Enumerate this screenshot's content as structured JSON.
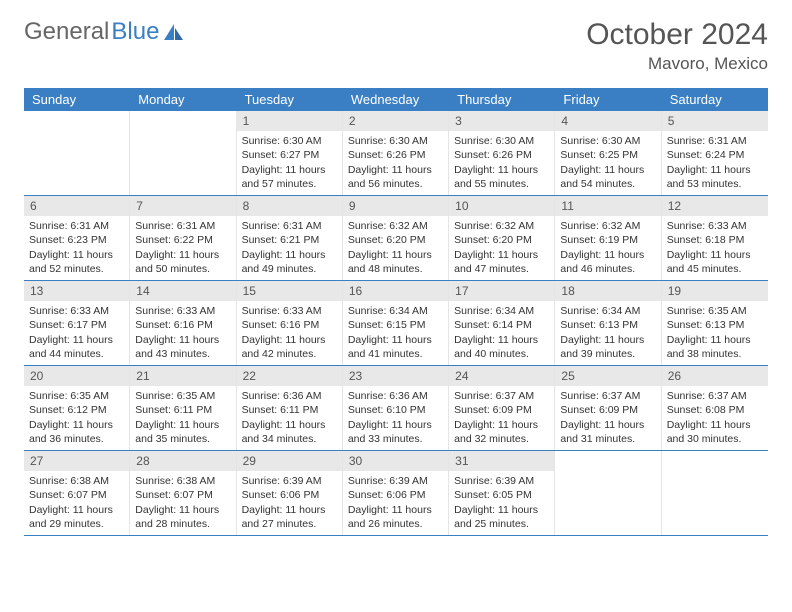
{
  "brand": {
    "part1": "General",
    "part2": "Blue"
  },
  "title": "October 2024",
  "location": "Mavoro, Mexico",
  "colors": {
    "headerBar": "#3a7fc4",
    "dayNumBg": "#e8e8e8",
    "weekBorder": "#3a7fc4",
    "textMuted": "#555"
  },
  "weekdays": [
    "Sunday",
    "Monday",
    "Tuesday",
    "Wednesday",
    "Thursday",
    "Friday",
    "Saturday"
  ],
  "startOffset": 2,
  "days": [
    {
      "n": 1,
      "sr": "6:30 AM",
      "ss": "6:27 PM",
      "dl": "11 hours and 57 minutes."
    },
    {
      "n": 2,
      "sr": "6:30 AM",
      "ss": "6:26 PM",
      "dl": "11 hours and 56 minutes."
    },
    {
      "n": 3,
      "sr": "6:30 AM",
      "ss": "6:26 PM",
      "dl": "11 hours and 55 minutes."
    },
    {
      "n": 4,
      "sr": "6:30 AM",
      "ss": "6:25 PM",
      "dl": "11 hours and 54 minutes."
    },
    {
      "n": 5,
      "sr": "6:31 AM",
      "ss": "6:24 PM",
      "dl": "11 hours and 53 minutes."
    },
    {
      "n": 6,
      "sr": "6:31 AM",
      "ss": "6:23 PM",
      "dl": "11 hours and 52 minutes."
    },
    {
      "n": 7,
      "sr": "6:31 AM",
      "ss": "6:22 PM",
      "dl": "11 hours and 50 minutes."
    },
    {
      "n": 8,
      "sr": "6:31 AM",
      "ss": "6:21 PM",
      "dl": "11 hours and 49 minutes."
    },
    {
      "n": 9,
      "sr": "6:32 AM",
      "ss": "6:20 PM",
      "dl": "11 hours and 48 minutes."
    },
    {
      "n": 10,
      "sr": "6:32 AM",
      "ss": "6:20 PM",
      "dl": "11 hours and 47 minutes."
    },
    {
      "n": 11,
      "sr": "6:32 AM",
      "ss": "6:19 PM",
      "dl": "11 hours and 46 minutes."
    },
    {
      "n": 12,
      "sr": "6:33 AM",
      "ss": "6:18 PM",
      "dl": "11 hours and 45 minutes."
    },
    {
      "n": 13,
      "sr": "6:33 AM",
      "ss": "6:17 PM",
      "dl": "11 hours and 44 minutes."
    },
    {
      "n": 14,
      "sr": "6:33 AM",
      "ss": "6:16 PM",
      "dl": "11 hours and 43 minutes."
    },
    {
      "n": 15,
      "sr": "6:33 AM",
      "ss": "6:16 PM",
      "dl": "11 hours and 42 minutes."
    },
    {
      "n": 16,
      "sr": "6:34 AM",
      "ss": "6:15 PM",
      "dl": "11 hours and 41 minutes."
    },
    {
      "n": 17,
      "sr": "6:34 AM",
      "ss": "6:14 PM",
      "dl": "11 hours and 40 minutes."
    },
    {
      "n": 18,
      "sr": "6:34 AM",
      "ss": "6:13 PM",
      "dl": "11 hours and 39 minutes."
    },
    {
      "n": 19,
      "sr": "6:35 AM",
      "ss": "6:13 PM",
      "dl": "11 hours and 38 minutes."
    },
    {
      "n": 20,
      "sr": "6:35 AM",
      "ss": "6:12 PM",
      "dl": "11 hours and 36 minutes."
    },
    {
      "n": 21,
      "sr": "6:35 AM",
      "ss": "6:11 PM",
      "dl": "11 hours and 35 minutes."
    },
    {
      "n": 22,
      "sr": "6:36 AM",
      "ss": "6:11 PM",
      "dl": "11 hours and 34 minutes."
    },
    {
      "n": 23,
      "sr": "6:36 AM",
      "ss": "6:10 PM",
      "dl": "11 hours and 33 minutes."
    },
    {
      "n": 24,
      "sr": "6:37 AM",
      "ss": "6:09 PM",
      "dl": "11 hours and 32 minutes."
    },
    {
      "n": 25,
      "sr": "6:37 AM",
      "ss": "6:09 PM",
      "dl": "11 hours and 31 minutes."
    },
    {
      "n": 26,
      "sr": "6:37 AM",
      "ss": "6:08 PM",
      "dl": "11 hours and 30 minutes."
    },
    {
      "n": 27,
      "sr": "6:38 AM",
      "ss": "6:07 PM",
      "dl": "11 hours and 29 minutes."
    },
    {
      "n": 28,
      "sr": "6:38 AM",
      "ss": "6:07 PM",
      "dl": "11 hours and 28 minutes."
    },
    {
      "n": 29,
      "sr": "6:39 AM",
      "ss": "6:06 PM",
      "dl": "11 hours and 27 minutes."
    },
    {
      "n": 30,
      "sr": "6:39 AM",
      "ss": "6:06 PM",
      "dl": "11 hours and 26 minutes."
    },
    {
      "n": 31,
      "sr": "6:39 AM",
      "ss": "6:05 PM",
      "dl": "11 hours and 25 minutes."
    }
  ],
  "labels": {
    "sunrise": "Sunrise:",
    "sunset": "Sunset:",
    "daylight": "Daylight:"
  }
}
